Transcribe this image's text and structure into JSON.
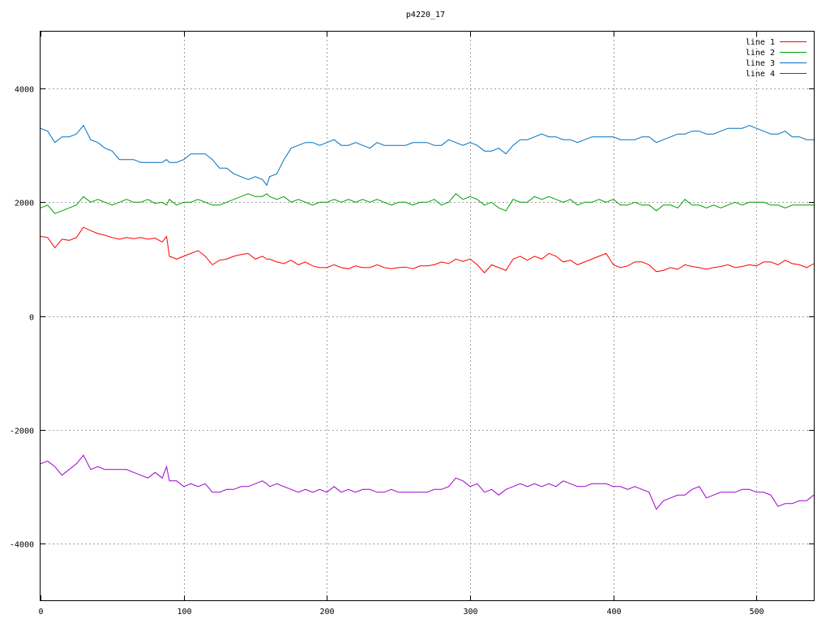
{
  "chart_data": {
    "type": "line",
    "title": "p4220_17",
    "xlabel": "",
    "ylabel": "",
    "xlim": [
      0,
      540
    ],
    "ylim": [
      -5000,
      5000
    ],
    "xticks": [
      0,
      100,
      200,
      300,
      400,
      500
    ],
    "yticks": [
      -4000,
      -2000,
      0,
      2000,
      4000
    ],
    "grid": true,
    "legend_position": "top-right",
    "x": [
      0,
      5,
      10,
      15,
      20,
      25,
      30,
      35,
      40,
      45,
      50,
      55,
      60,
      65,
      70,
      75,
      80,
      85,
      88,
      90,
      95,
      100,
      105,
      110,
      115,
      120,
      125,
      130,
      135,
      140,
      145,
      150,
      155,
      158,
      160,
      165,
      170,
      175,
      180,
      185,
      190,
      195,
      200,
      205,
      210,
      215,
      220,
      225,
      230,
      235,
      240,
      245,
      250,
      255,
      260,
      265,
      270,
      275,
      280,
      285,
      290,
      295,
      300,
      305,
      310,
      315,
      320,
      325,
      330,
      335,
      340,
      345,
      350,
      355,
      360,
      365,
      370,
      375,
      380,
      385,
      390,
      395,
      400,
      405,
      410,
      415,
      420,
      425,
      430,
      435,
      440,
      445,
      450,
      455,
      460,
      465,
      470,
      475,
      480,
      485,
      490,
      495,
      500,
      505,
      510,
      515,
      520,
      525,
      530,
      535,
      540
    ],
    "series": [
      {
        "name": "line 1",
        "color": "#ff0000",
        "values": [
          1400,
          1380,
          1200,
          1350,
          1330,
          1380,
          1560,
          1500,
          1450,
          1420,
          1380,
          1350,
          1380,
          1360,
          1380,
          1350,
          1370,
          1300,
          1400,
          1050,
          1000,
          1050,
          1100,
          1150,
          1050,
          900,
          980,
          1000,
          1050,
          1080,
          1100,
          1000,
          1050,
          1000,
          1000,
          950,
          920,
          980,
          900,
          950,
          880,
          850,
          850,
          900,
          850,
          830,
          880,
          850,
          850,
          900,
          850,
          830,
          850,
          860,
          830,
          880,
          880,
          900,
          950,
          920,
          1000,
          960,
          1000,
          900,
          760,
          900,
          850,
          800,
          1000,
          1050,
          980,
          1050,
          1000,
          1100,
          1050,
          950,
          980,
          900,
          950,
          1000,
          1050,
          1100,
          900,
          850,
          880,
          950,
          950,
          900,
          780,
          800,
          850,
          820,
          900,
          870,
          850,
          820,
          850,
          870,
          900,
          850,
          870,
          900,
          880,
          950,
          950,
          900,
          980,
          920,
          900,
          850,
          920
        ]
      },
      {
        "name": "line 2",
        "color": "#00a000",
        "values": [
          1900,
          1950,
          1800,
          1850,
          1900,
          1950,
          2100,
          2000,
          2050,
          2000,
          1950,
          2000,
          2050,
          2000,
          2000,
          2050,
          1980,
          2000,
          1950,
          2050,
          1950,
          2000,
          2000,
          2050,
          2000,
          1950,
          1950,
          2000,
          2050,
          2100,
          2150,
          2100,
          2100,
          2150,
          2100,
          2050,
          2100,
          2000,
          2050,
          2000,
          1950,
          2000,
          2000,
          2050,
          2000,
          2050,
          2000,
          2050,
          2000,
          2050,
          2000,
          1950,
          2000,
          2000,
          1950,
          2000,
          2000,
          2050,
          1950,
          2000,
          2150,
          2050,
          2100,
          2050,
          1950,
          2000,
          1900,
          1850,
          2050,
          2000,
          2000,
          2100,
          2050,
          2100,
          2050,
          2000,
          2050,
          1950,
          2000,
          2000,
          2050,
          2000,
          2050,
          1950,
          1950,
          2000,
          1950,
          1950,
          1850,
          1950,
          1950,
          1900,
          2050,
          1950,
          1950,
          1900,
          1950,
          1900,
          1950,
          2000,
          1950,
          2000,
          2000,
          2000,
          1950,
          1950,
          1900,
          1950,
          1950,
          1950,
          1950
        ]
      },
      {
        "name": "line 3",
        "color": "#0070c0",
        "values": [
          3300,
          3250,
          3050,
          3150,
          3150,
          3200,
          3350,
          3100,
          3050,
          2950,
          2900,
          2750,
          2750,
          2750,
          2700,
          2700,
          2700,
          2700,
          2750,
          2700,
          2700,
          2750,
          2850,
          2850,
          2850,
          2750,
          2600,
          2600,
          2500,
          2450,
          2400,
          2450,
          2400,
          2300,
          2450,
          2500,
          2750,
          2950,
          3000,
          3050,
          3050,
          3000,
          3050,
          3100,
          3000,
          3000,
          3050,
          3000,
          2950,
          3050,
          3000,
          3000,
          3000,
          3000,
          3050,
          3050,
          3050,
          3000,
          3000,
          3100,
          3050,
          3000,
          3050,
          3000,
          2900,
          2900,
          2950,
          2850,
          3000,
          3100,
          3100,
          3150,
          3200,
          3150,
          3150,
          3100,
          3100,
          3050,
          3100,
          3150,
          3150,
          3150,
          3150,
          3100,
          3100,
          3100,
          3150,
          3150,
          3050,
          3100,
          3150,
          3200,
          3200,
          3250,
          3250,
          3200,
          3200,
          3250,
          3300,
          3300,
          3300,
          3350,
          3300,
          3250,
          3200,
          3200,
          3250,
          3150,
          3150,
          3100,
          3100
        ]
      },
      {
        "name": "line 4",
        "color": "#a000d0",
        "values": [
          -2600,
          -2550,
          -2650,
          -2800,
          -2700,
          -2600,
          -2450,
          -2700,
          -2650,
          -2700,
          -2700,
          -2700,
          -2700,
          -2750,
          -2800,
          -2850,
          -2750,
          -2850,
          -2650,
          -2900,
          -2900,
          -3000,
          -2950,
          -3000,
          -2950,
          -3100,
          -3100,
          -3050,
          -3050,
          -3000,
          -3000,
          -2950,
          -2900,
          -2950,
          -3000,
          -2950,
          -3000,
          -3050,
          -3100,
          -3050,
          -3100,
          -3050,
          -3100,
          -3000,
          -3100,
          -3050,
          -3100,
          -3050,
          -3050,
          -3100,
          -3100,
          -3050,
          -3100,
          -3100,
          -3100,
          -3100,
          -3100,
          -3050,
          -3050,
          -3000,
          -2850,
          -2900,
          -3000,
          -2950,
          -3100,
          -3050,
          -3150,
          -3050,
          -3000,
          -2950,
          -3000,
          -2950,
          -3000,
          -2950,
          -3000,
          -2900,
          -2950,
          -3000,
          -3000,
          -2950,
          -2950,
          -2950,
          -3000,
          -3000,
          -3050,
          -3000,
          -3050,
          -3100,
          -3400,
          -3250,
          -3200,
          -3150,
          -3150,
          -3050,
          -3000,
          -3200,
          -3150,
          -3100,
          -3100,
          -3100,
          -3050,
          -3050,
          -3100,
          -3100,
          -3150,
          -3350,
          -3300,
          -3300,
          -3250,
          -3250,
          -3150
        ]
      }
    ]
  }
}
